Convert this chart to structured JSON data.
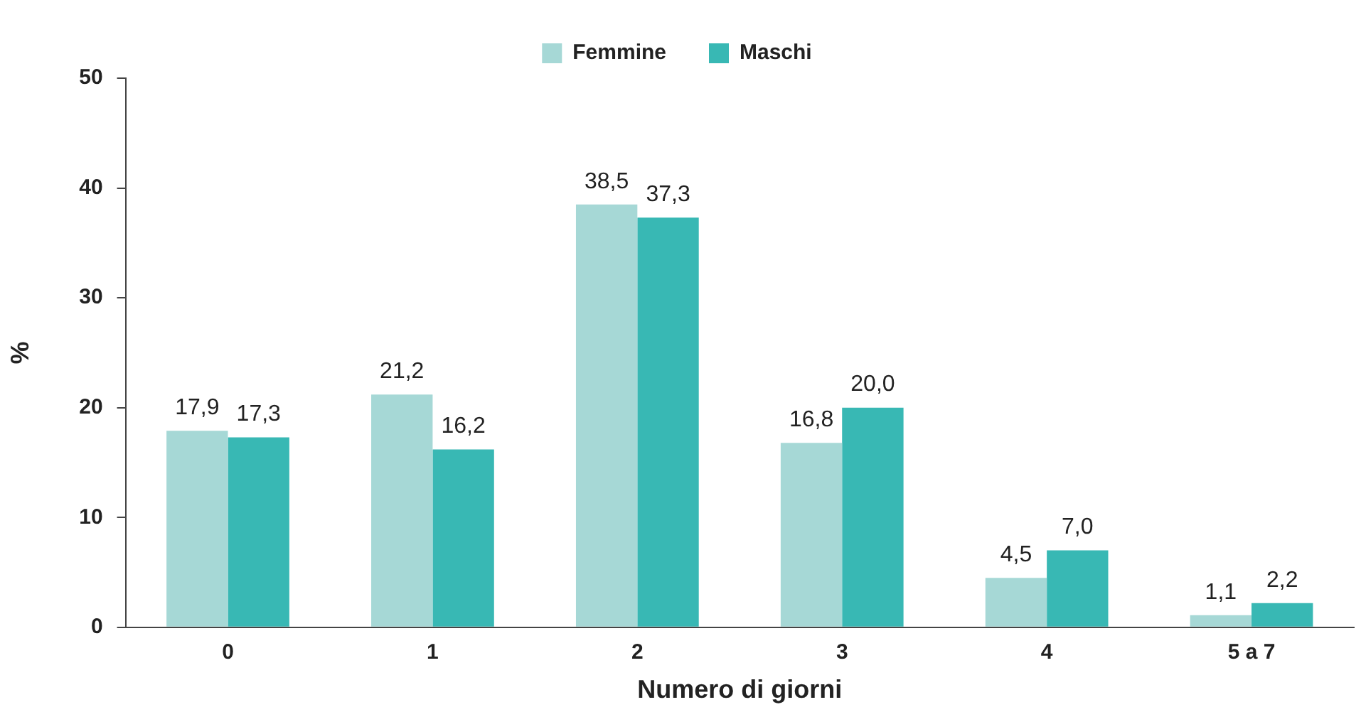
{
  "chart_data": {
    "type": "bar",
    "xlabel": "Numero di giorni",
    "ylabel": "%",
    "categories": [
      "0",
      "1",
      "2",
      "3",
      "4",
      "5 a 7"
    ],
    "series": [
      {
        "name": "Femmine",
        "color": "#a6d8d6",
        "values": [
          17.9,
          21.2,
          38.5,
          16.8,
          4.5,
          1.1
        ],
        "value_labels": [
          "17,9",
          "21,2",
          "38,5",
          "16,8",
          "4,5",
          "1,1"
        ]
      },
      {
        "name": "Maschi",
        "color": "#38b8b4",
        "values": [
          17.3,
          16.2,
          37.3,
          20.0,
          7.0,
          2.2
        ],
        "value_labels": [
          "17,3",
          "16,2",
          "37,3",
          "20,0",
          "7,0",
          "2,2"
        ]
      }
    ],
    "ylim": [
      0,
      50
    ],
    "yticks": [
      0,
      10,
      20,
      30,
      40,
      50
    ],
    "grid": false,
    "legend": "top"
  }
}
